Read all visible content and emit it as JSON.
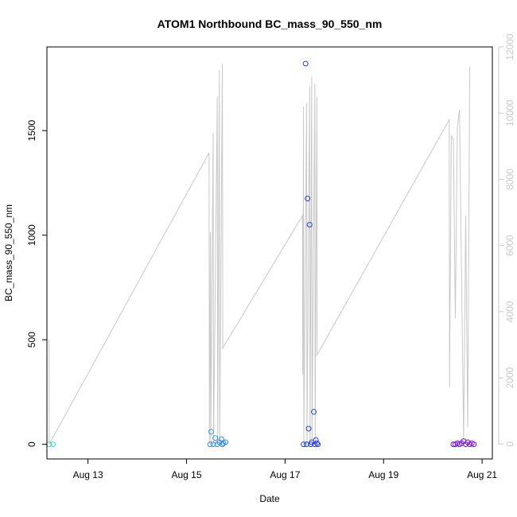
{
  "chart_data": {
    "type": "scatter",
    "title": "ATOM1 Northbound BC_mass_90_550_nm",
    "xlabel": "Date",
    "ylabel": "BC_mass_90_550_nm",
    "x_ticks": [
      "Aug 13",
      "Aug 15",
      "Aug 17",
      "Aug 19",
      "Aug 21"
    ],
    "y_ticks": [
      0,
      500,
      1000,
      1500
    ],
    "y2_ticks": [
      0,
      2000,
      4000,
      6000,
      8000,
      10000,
      12000
    ],
    "xlim": [
      "2023-08-12 04:00",
      "2023-08-21 05:00"
    ],
    "ylim": [
      -70,
      1900
    ],
    "y2lim": [
      -450,
      12000
    ],
    "colors": {
      "line": "#c8c8c8",
      "axis": "#000000",
      "right_axis": "#c8c8c8",
      "points_gradient": [
        "#33e0c0",
        "#16c8e8",
        "#2b8ff0",
        "#2040f0",
        "#5a20e0",
        "#7a10e0"
      ]
    },
    "series": [
      {
        "type": "scatter",
        "axis": "left",
        "points": [
          {
            "x": "2023-08-12 05:00",
            "y": 0
          },
          {
            "x": "2023-08-12 07:00",
            "y": 0
          },
          {
            "x": "2023-08-15 11:30",
            "y": 0
          },
          {
            "x": "2023-08-15 12:00",
            "y": 60
          },
          {
            "x": "2023-08-15 13:00",
            "y": 0
          },
          {
            "x": "2023-08-15 14:00",
            "y": 30
          },
          {
            "x": "2023-08-15 15:00",
            "y": 0
          },
          {
            "x": "2023-08-15 16:00",
            "y": 10
          },
          {
            "x": "2023-08-15 17:00",
            "y": 25
          },
          {
            "x": "2023-08-15 17:30",
            "y": 0
          },
          {
            "x": "2023-08-15 18:00",
            "y": 5
          },
          {
            "x": "2023-08-15 19:00",
            "y": 10
          },
          {
            "x": "2023-08-17 09:00",
            "y": 0
          },
          {
            "x": "2023-08-17 10:00",
            "y": 1820
          },
          {
            "x": "2023-08-17 10:30",
            "y": 0
          },
          {
            "x": "2023-08-17 11:00",
            "y": 1175
          },
          {
            "x": "2023-08-17 11:30",
            "y": 75
          },
          {
            "x": "2023-08-17 12:00",
            "y": 1050
          },
          {
            "x": "2023-08-17 12:30",
            "y": 0
          },
          {
            "x": "2023-08-17 13:00",
            "y": 10
          },
          {
            "x": "2023-08-17 14:00",
            "y": 155
          },
          {
            "x": "2023-08-17 14:30",
            "y": 0
          },
          {
            "x": "2023-08-17 15:00",
            "y": 20
          },
          {
            "x": "2023-08-17 15:30",
            "y": 5
          },
          {
            "x": "2023-08-17 16:00",
            "y": 0
          },
          {
            "x": "2023-08-20 10:00",
            "y": 0
          },
          {
            "x": "2023-08-20 11:00",
            "y": 0
          },
          {
            "x": "2023-08-20 12:00",
            "y": 5
          },
          {
            "x": "2023-08-20 13:00",
            "y": 0
          },
          {
            "x": "2023-08-20 14:00",
            "y": 5
          },
          {
            "x": "2023-08-20 15:00",
            "y": 15
          },
          {
            "x": "2023-08-20 16:00",
            "y": 0
          },
          {
            "x": "2023-08-20 17:00",
            "y": 10
          },
          {
            "x": "2023-08-20 18:00",
            "y": 0
          },
          {
            "x": "2023-08-20 19:00",
            "y": 5
          },
          {
            "x": "2023-08-20 20:00",
            "y": 0
          }
        ]
      },
      {
        "type": "line",
        "axis": "right",
        "points": [
          {
            "x": "2023-08-12 05:00",
            "y": 3150
          },
          {
            "x": "2023-08-12 05:10",
            "y": 0
          },
          {
            "x": "2023-08-15 11:00",
            "y": 8800
          },
          {
            "x": "2023-08-15 11:10",
            "y": 0
          },
          {
            "x": "2023-08-15 11:40",
            "y": 6400
          },
          {
            "x": "2023-08-15 11:50",
            "y": 0
          },
          {
            "x": "2023-08-15 13:00",
            "y": 9400
          },
          {
            "x": "2023-08-15 13:10",
            "y": 0
          },
          {
            "x": "2023-08-15 15:00",
            "y": 10500
          },
          {
            "x": "2023-08-15 15:10",
            "y": 0
          },
          {
            "x": "2023-08-15 16:00",
            "y": 11300
          },
          {
            "x": "2023-08-15 16:10",
            "y": 0
          },
          {
            "x": "2023-08-15 17:30",
            "y": 11500
          },
          {
            "x": "2023-08-15 17:40",
            "y": 2900
          },
          {
            "x": "2023-08-17 08:30",
            "y": 6900
          },
          {
            "x": "2023-08-17 08:40",
            "y": 2100
          },
          {
            "x": "2023-08-17 09:00",
            "y": 10200
          },
          {
            "x": "2023-08-17 09:10",
            "y": 0
          },
          {
            "x": "2023-08-17 10:30",
            "y": 10300
          },
          {
            "x": "2023-08-17 10:40",
            "y": 0
          },
          {
            "x": "2023-08-17 12:00",
            "y": 10800
          },
          {
            "x": "2023-08-17 12:10",
            "y": 0
          },
          {
            "x": "2023-08-17 13:00",
            "y": 11100
          },
          {
            "x": "2023-08-17 13:10",
            "y": 0
          },
          {
            "x": "2023-08-17 14:30",
            "y": 10900
          },
          {
            "x": "2023-08-17 14:40",
            "y": 0
          },
          {
            "x": "2023-08-17 15:30",
            "y": 10500
          },
          {
            "x": "2023-08-17 15:40",
            "y": 2700
          },
          {
            "x": "2023-08-20 08:00",
            "y": 9800
          },
          {
            "x": "2023-08-20 08:10",
            "y": 1700
          },
          {
            "x": "2023-08-20 09:00",
            "y": 9300
          },
          {
            "x": "2023-08-20 10:00",
            "y": 9200
          },
          {
            "x": "2023-08-20 11:00",
            "y": 3800
          },
          {
            "x": "2023-08-20 12:00",
            "y": 9600
          },
          {
            "x": "2023-08-20 13:00",
            "y": 10100
          },
          {
            "x": "2023-08-20 15:00",
            "y": 100
          },
          {
            "x": "2023-08-20 16:00",
            "y": 6900
          },
          {
            "x": "2023-08-20 17:00",
            "y": 500
          },
          {
            "x": "2023-08-20 18:00",
            "y": 11400
          }
        ]
      }
    ]
  }
}
